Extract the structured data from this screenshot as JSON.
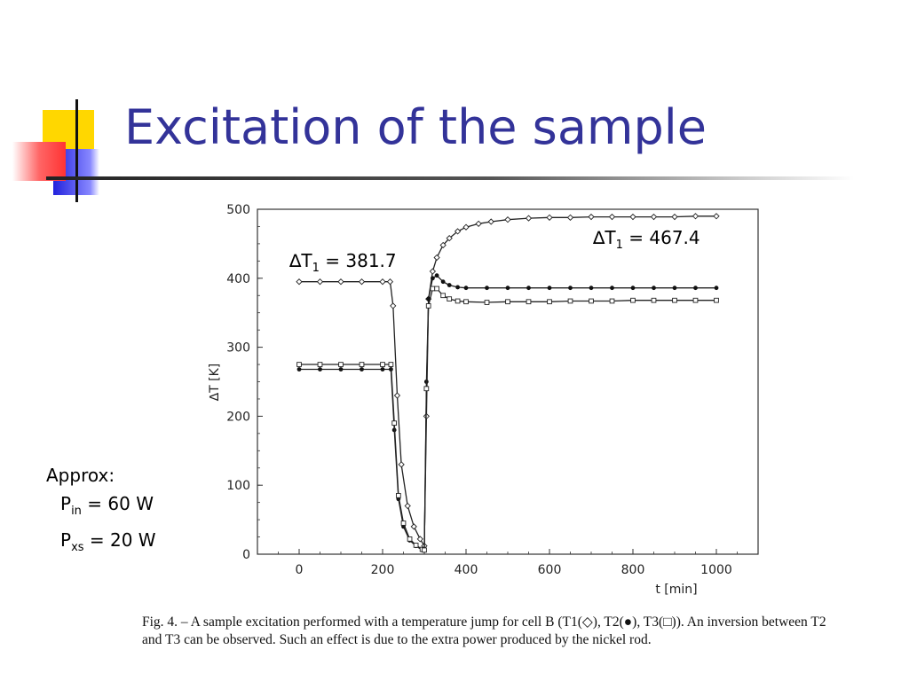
{
  "slide": {
    "title": "Excitation of the sample"
  },
  "annotations": {
    "dt_left": {
      "symbol": "∆T",
      "sub": "1",
      "rest": " = 381.7"
    },
    "dt_right": {
      "symbol": "∆T",
      "sub": "1",
      "rest": " = 467.4"
    }
  },
  "approx": {
    "heading": "Approx:",
    "pin_label": "P",
    "pin_sub": "in",
    "pin_rest": " = 60 W",
    "pxs_label": "P",
    "pxs_sub": "xs",
    "pxs_rest": " = 20 W"
  },
  "caption": {
    "text": "Fig. 4. – A sample excitation performed with a temperature jump for cell B (T1(◇), T2(●), T3(□)). An inversion between T2 and T3 can be observed. Such an effect is due to the extra power produced by the nickel rod."
  },
  "chart_data": {
    "type": "line",
    "title": "",
    "xlabel": "t [min]",
    "ylabel": "∆T [K]",
    "xlim": [
      -100,
      1100
    ],
    "ylim": [
      0,
      500
    ],
    "xticks": [
      0,
      200,
      400,
      600,
      800,
      1000
    ],
    "yticks": [
      0,
      100,
      200,
      300,
      400,
      500
    ],
    "grid": false,
    "series": [
      {
        "name": "T1",
        "marker": "open-diamond",
        "x": [
          0,
          50,
          100,
          150,
          200,
          218,
          225,
          235,
          245,
          260,
          275,
          290,
          300,
          305,
          310,
          320,
          330,
          345,
          360,
          380,
          400,
          430,
          460,
          500,
          550,
          600,
          650,
          700,
          750,
          800,
          850,
          900,
          950,
          1000
        ],
        "y": [
          395,
          395,
          395,
          395,
          395,
          395,
          360,
          230,
          130,
          70,
          40,
          22,
          12,
          200,
          370,
          410,
          430,
          448,
          458,
          468,
          474,
          479,
          482,
          485,
          487,
          488,
          488,
          489,
          489,
          489,
          489,
          489,
          490,
          490
        ]
      },
      {
        "name": "T2",
        "marker": "filled-circle",
        "x": [
          0,
          50,
          100,
          150,
          200,
          220,
          228,
          238,
          250,
          265,
          280,
          295,
          300,
          305,
          310,
          320,
          330,
          345,
          360,
          380,
          400,
          450,
          500,
          550,
          600,
          650,
          700,
          750,
          800,
          850,
          900,
          950,
          1000
        ],
        "y": [
          268,
          268,
          268,
          268,
          268,
          268,
          180,
          80,
          40,
          20,
          12,
          6,
          5,
          250,
          370,
          400,
          404,
          395,
          390,
          387,
          386,
          386,
          386,
          386,
          386,
          386,
          386,
          386,
          386,
          386,
          386,
          386,
          386
        ]
      },
      {
        "name": "T3",
        "marker": "open-square",
        "x": [
          0,
          50,
          100,
          150,
          200,
          220,
          228,
          238,
          250,
          265,
          280,
          295,
          300,
          305,
          310,
          320,
          330,
          345,
          360,
          380,
          400,
          450,
          500,
          550,
          600,
          650,
          700,
          750,
          800,
          850,
          900,
          950,
          1000
        ],
        "y": [
          275,
          275,
          275,
          275,
          275,
          275,
          190,
          85,
          45,
          22,
          13,
          7,
          6,
          240,
          360,
          385,
          385,
          375,
          370,
          367,
          366,
          365,
          366,
          366,
          366,
          367,
          367,
          367,
          368,
          368,
          368,
          368,
          368
        ]
      }
    ]
  }
}
